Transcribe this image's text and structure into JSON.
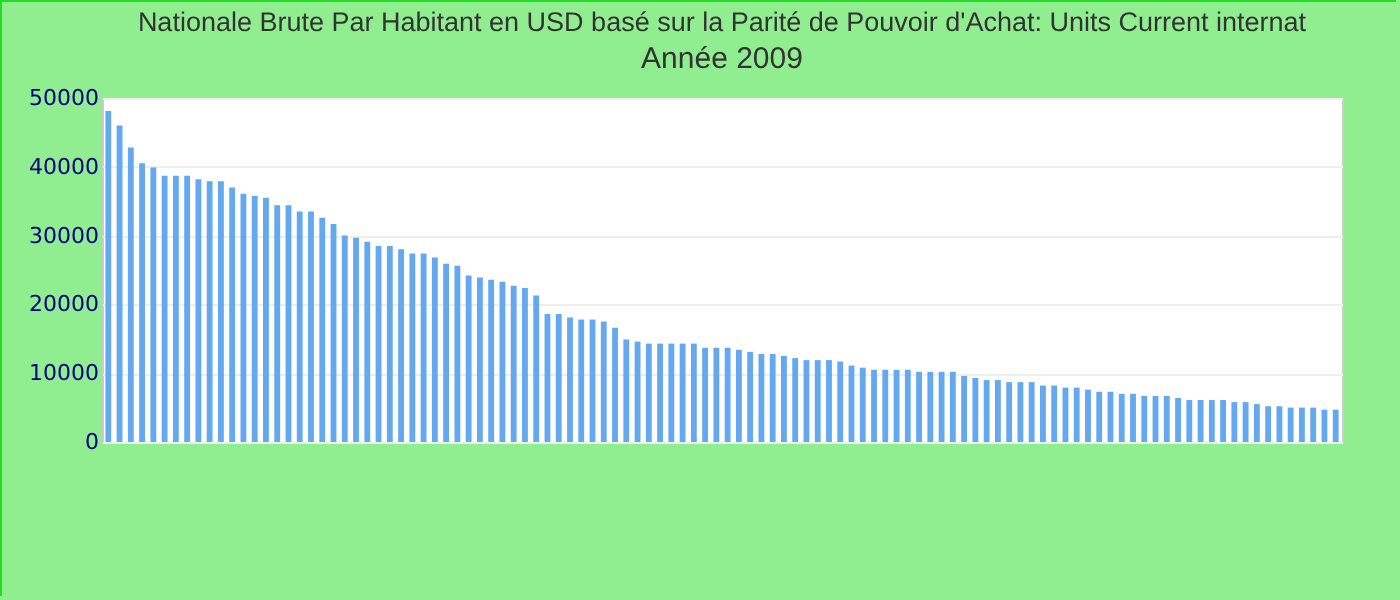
{
  "chart_data": {
    "type": "bar",
    "title": "Nationale Brute Par Habitant en USD basé sur la Parité de Pouvoir d'Achat: Units Current internat",
    "subtitle": "Année 2009",
    "categories": [
      null,
      null,
      null,
      null,
      null,
      null,
      null,
      null,
      null,
      null,
      null,
      null,
      null,
      null,
      null,
      null,
      null,
      null,
      null,
      null,
      null,
      null,
      null,
      null,
      null,
      null,
      null,
      null,
      null,
      null,
      null,
      null,
      null,
      null,
      null,
      null,
      null,
      null,
      null,
      null,
      null,
      null,
      null,
      null,
      null,
      null,
      null,
      null,
      null,
      null,
      null,
      null,
      null,
      null,
      null,
      null,
      null,
      null,
      null,
      null,
      null,
      null,
      null,
      null,
      null,
      null,
      null,
      null,
      null,
      null,
      null,
      null,
      null,
      null,
      null,
      null,
      null,
      null,
      null,
      null,
      null,
      null,
      null,
      null,
      null,
      null,
      null,
      null,
      null,
      null,
      null,
      null,
      null,
      null,
      null,
      null,
      null,
      null,
      null,
      null,
      null,
      null,
      null,
      null,
      null,
      null,
      null,
      null,
      null,
      null
    ],
    "values": [
      48100,
      46000,
      42800,
      40500,
      39900,
      38700,
      38700,
      38700,
      38200,
      37900,
      37900,
      37000,
      36100,
      35800,
      35500,
      34400,
      34400,
      33500,
      33500,
      32600,
      31700,
      30000,
      29700,
      29100,
      28500,
      28500,
      28000,
      27400,
      27400,
      26800,
      25900,
      25600,
      24200,
      23900,
      23600,
      23300,
      22700,
      22400,
      21300,
      18600,
      18600,
      18100,
      17800,
      17800,
      17500,
      16600,
      14900,
      14600,
      14300,
      14300,
      14300,
      14300,
      14300,
      13700,
      13700,
      13700,
      13400,
      13100,
      12800,
      12800,
      12500,
      12200,
      11900,
      11900,
      11900,
      11700,
      11100,
      10800,
      10500,
      10500,
      10500,
      10500,
      10200,
      10200,
      10200,
      10200,
      9600,
      9300,
      9000,
      9000,
      8700,
      8700,
      8700,
      8200,
      8200,
      7900,
      7900,
      7600,
      7300,
      7300,
      7000,
      7000,
      6700,
      6700,
      6700,
      6400,
      6100,
      6100,
      6100,
      6100,
      5800,
      5800,
      5500,
      5200,
      5200,
      5000,
      5000,
      5000,
      4700,
      4700
    ],
    "color": "#64a8f0",
    "ylim": [
      0,
      50000
    ],
    "yticks": [
      0,
      10000,
      20000,
      30000,
      40000,
      50000
    ],
    "grid": "y"
  }
}
